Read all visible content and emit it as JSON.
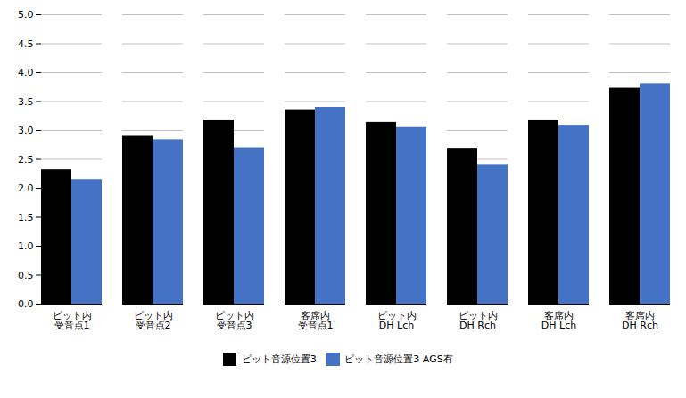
{
  "chart_data": {
    "type": "bar",
    "categories": [
      "ピット内\n受音点1",
      "ピット内\n受音点2",
      "ピット内\n受音点3",
      "客席内\n受音点1",
      "ピット内\nDH Lch",
      "ピット内\nDH Rch",
      "客席内\nDH Lch",
      "客席内\nDH Rch"
    ],
    "series": [
      {
        "name": "ピット音源位置3",
        "color": "#000000",
        "values": [
          2.32,
          2.9,
          3.17,
          3.36,
          3.14,
          2.69,
          3.17,
          3.73
        ]
      },
      {
        "name": "ピット音源位置3 AGS有",
        "color": "#4472C4",
        "values": [
          2.15,
          2.84,
          2.7,
          3.4,
          3.05,
          2.41,
          3.09,
          3.81
        ]
      }
    ],
    "ylim": [
      0,
      5
    ],
    "yticks": [
      {
        "value": 0,
        "label": "0.0"
      },
      0.5,
      {
        "value": 1.0,
        "label": "1.0"
      },
      1.5,
      {
        "value": 2.0,
        "label": "2.0"
      },
      2.5,
      {
        "value": 3.0,
        "label": "3.0"
      },
      3.5,
      {
        "value": 4.0,
        "label": "4.0"
      },
      4.5,
      {
        "value": 5.0,
        "label": "5.0"
      }
    ],
    "grid": true,
    "legend": "bottom"
  }
}
